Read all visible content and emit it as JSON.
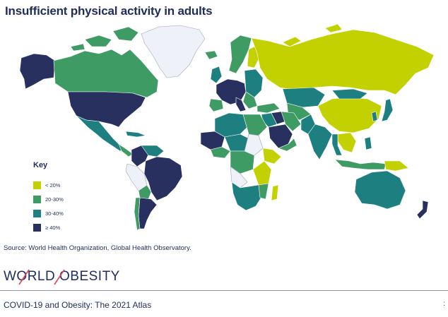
{
  "title": "Insufficient physical activity in adults",
  "legend": {
    "title": "Key",
    "items": [
      {
        "label": "< 20%",
        "color": "#c3d100"
      },
      {
        "label": "20-30%",
        "color": "#3f9b64"
      },
      {
        "label": "30-40%",
        "color": "#1d7f80"
      },
      {
        "label": "≥ 40%",
        "color": "#27305e"
      }
    ],
    "no_data_color": "#eef1f8"
  },
  "source": "Source: World Health Organization, Global Health Observatory.",
  "logo": {
    "text": "WORLD OBESITY",
    "slash_color": "#e0445a"
  },
  "footer": "COVID-19 and Obesity: The 2021 Atlas",
  "page_mark": ":"
}
